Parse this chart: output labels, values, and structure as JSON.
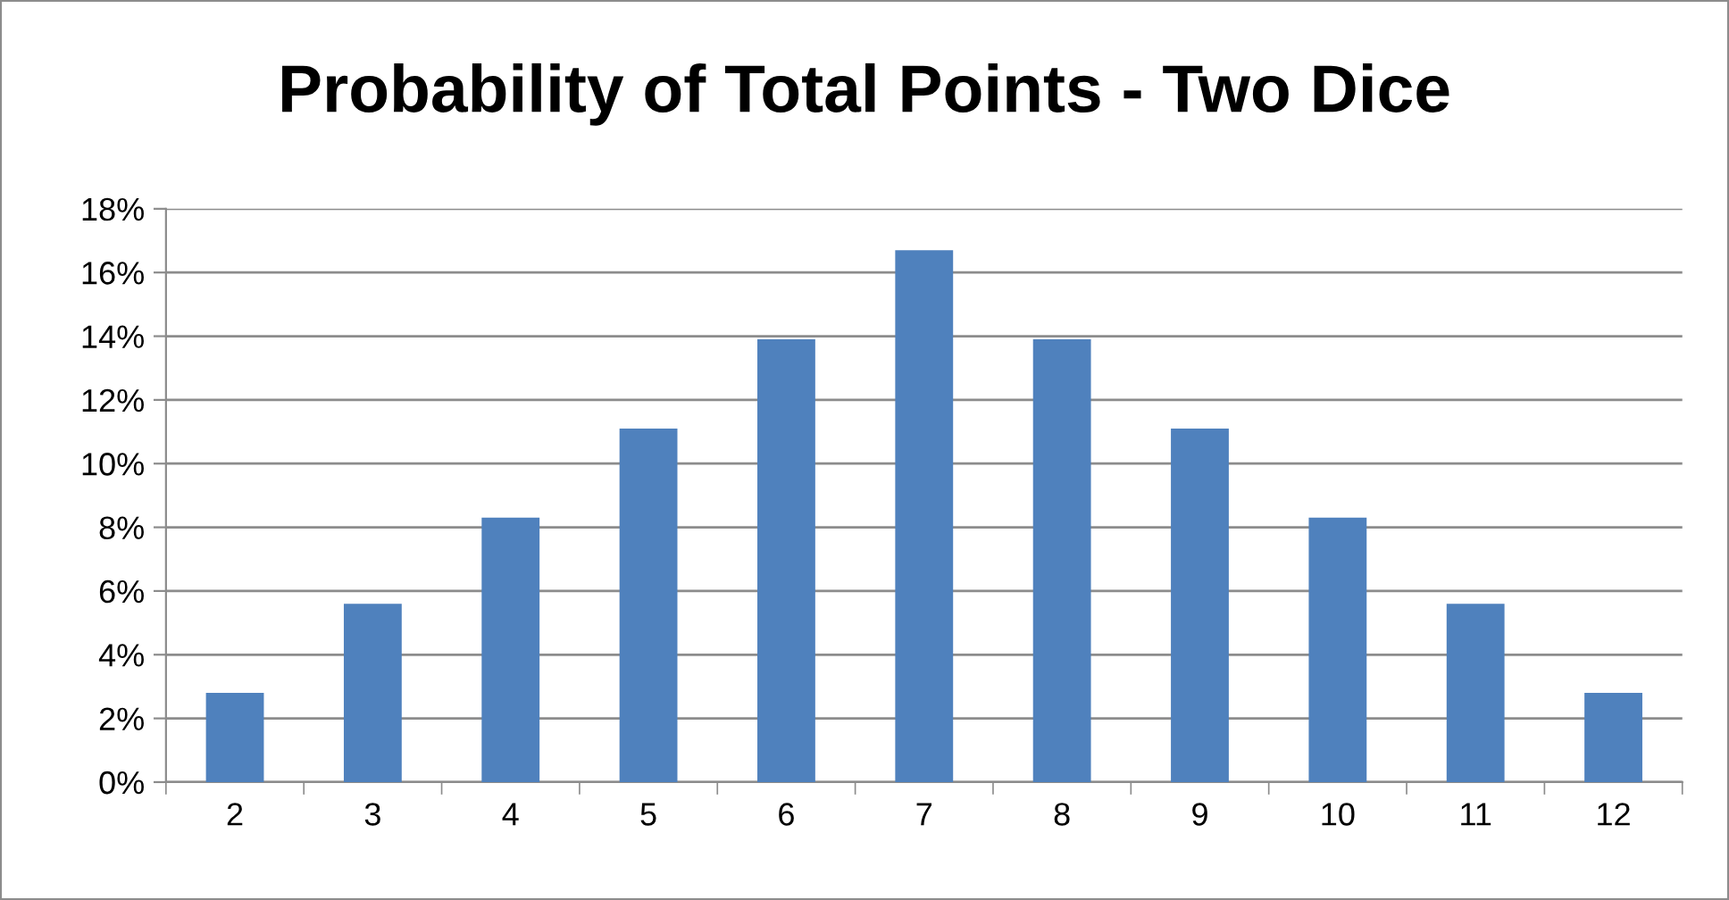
{
  "chart_data": {
    "type": "bar",
    "title": "Probability of Total Points - Two Dice",
    "categories": [
      "2",
      "3",
      "4",
      "5",
      "6",
      "7",
      "8",
      "9",
      "10",
      "11",
      "12"
    ],
    "values": [
      2.8,
      5.6,
      8.3,
      11.1,
      13.9,
      16.7,
      13.9,
      11.1,
      8.3,
      5.6,
      2.8
    ],
    "color": "#4f81bd",
    "ylim": [
      0,
      18
    ],
    "yticks": [
      {
        "value": 0,
        "label": "0%"
      },
      {
        "value": 2,
        "label": "2%"
      },
      {
        "value": 4,
        "label": "4%"
      },
      {
        "value": 6,
        "label": "6%"
      },
      {
        "value": 8,
        "label": "8%"
      },
      {
        "value": 10,
        "label": "10%"
      },
      {
        "value": 12,
        "label": "12%"
      },
      {
        "value": 14,
        "label": "14%"
      },
      {
        "value": 16,
        "label": "16%"
      },
      {
        "value": 18,
        "label": "18%"
      }
    ],
    "grid": "y",
    "legend": false
  }
}
